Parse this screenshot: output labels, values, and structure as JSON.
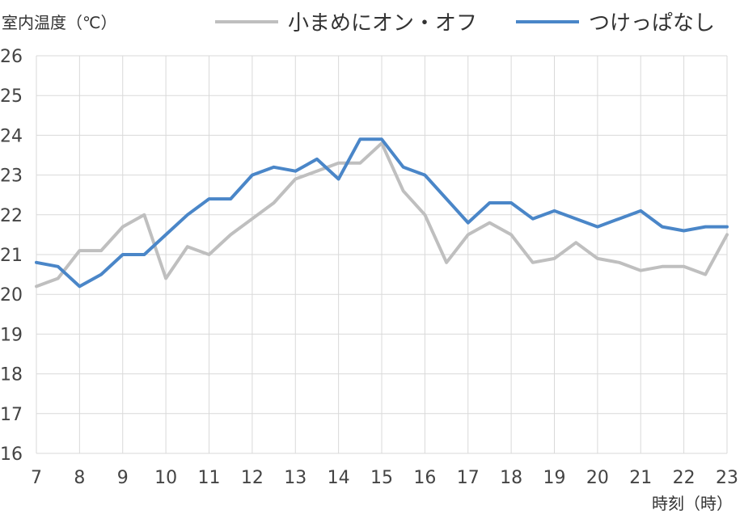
{
  "chart_data": {
    "type": "line",
    "ylabel": "室内温度（℃）",
    "xlabel": "時刻（時）",
    "ylim": [
      16,
      26
    ],
    "xlim": [
      7,
      23
    ],
    "y_ticks": [
      "16",
      "17",
      "18",
      "19",
      "20",
      "21",
      "22",
      "23",
      "24",
      "25",
      "26"
    ],
    "x_ticks": [
      "7",
      "8",
      "9",
      "10",
      "11",
      "12",
      "13",
      "14",
      "15",
      "16",
      "17",
      "18",
      "19",
      "20",
      "21",
      "22",
      "23"
    ],
    "grid": true,
    "legend_position": "top",
    "x": [
      7,
      7.5,
      8,
      8.5,
      9,
      9.5,
      10,
      10.5,
      11,
      11.5,
      12,
      12.5,
      13,
      13.5,
      14,
      14.5,
      15,
      15.5,
      16,
      16.5,
      17,
      17.5,
      18,
      18.5,
      19,
      19.5,
      20,
      20.5,
      21,
      21.5,
      22,
      22.5,
      23
    ],
    "series": [
      {
        "name": "小まめにオン・オフ",
        "color": "#bfbfbf",
        "values": [
          20.2,
          20.4,
          21.1,
          21.1,
          21.7,
          22.0,
          20.4,
          21.2,
          21.0,
          21.5,
          21.9,
          22.3,
          22.9,
          23.1,
          23.3,
          23.3,
          23.8,
          22.6,
          22.0,
          20.8,
          21.5,
          21.8,
          21.5,
          20.8,
          20.9,
          21.3,
          20.9,
          20.8,
          20.6,
          20.7,
          20.7,
          20.5,
          21.5
        ]
      },
      {
        "name": "つけっぱなし",
        "color": "#4a86c8",
        "values": [
          20.8,
          20.7,
          20.2,
          20.5,
          21.0,
          21.0,
          21.5,
          22.0,
          22.4,
          22.4,
          23.0,
          23.2,
          23.1,
          23.4,
          22.9,
          23.9,
          23.9,
          23.2,
          23.0,
          22.4,
          21.8,
          22.3,
          22.3,
          21.9,
          22.1,
          21.9,
          21.7,
          21.9,
          22.1,
          21.7,
          21.6,
          21.7,
          21.7
        ]
      }
    ]
  }
}
